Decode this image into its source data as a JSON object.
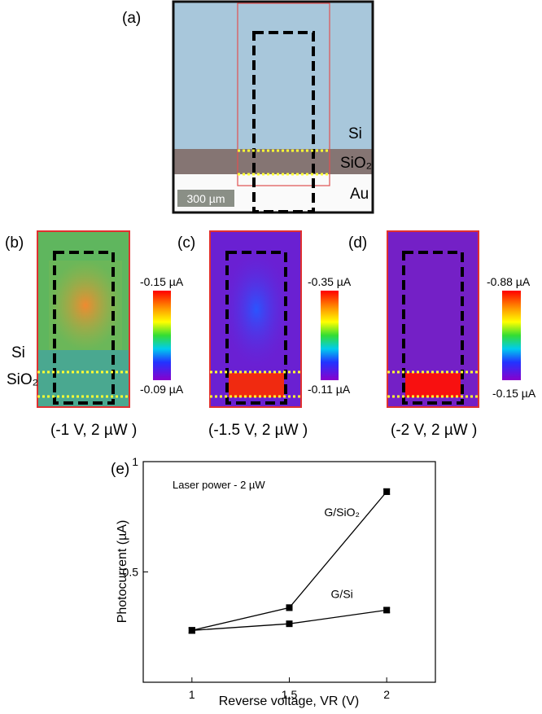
{
  "panel_a": {
    "label": "(a)",
    "regions": [
      "Si",
      "SiO₂",
      "Au"
    ],
    "scale_bar": "300 µm"
  },
  "maps": [
    {
      "label": "(b)",
      "max": "-0.15 µA",
      "min": "-0.09 µA",
      "condition": "(-1 V, 2 µW )",
      "regions": [
        "Si",
        "SiO₂"
      ]
    },
    {
      "label": "(c)",
      "max": "-0.35 µA",
      "min": "-0.11 µA",
      "condition": "(-1.5 V, 2 µW )"
    },
    {
      "label": "(d)",
      "max": "-0.88 µA",
      "min": "-0.15 µA",
      "condition": "(-2 V, 2 µW )"
    }
  ],
  "chart_data": {
    "type": "line",
    "label": "(e)",
    "annotation": "Laser power - 2 µW",
    "x_label": "Reverse voltage, VR (V)",
    "y_label": "Photocurrent (µA)",
    "x": [
      1,
      1.5,
      2
    ],
    "series": [
      {
        "name": "G/SiO₂",
        "color": "#000000",
        "values": [
          0.235,
          0.338,
          0.864
        ],
        "errors": [
          0.012,
          0.012,
          0.012
        ]
      },
      {
        "name": "G/Si",
        "color": "#000000",
        "values": [
          0.235,
          0.265,
          0.327
        ],
        "errors": [
          0.012,
          0.01,
          0.01
        ]
      }
    ],
    "xlim": [
      0.75,
      2.25
    ],
    "ylim": [
      0,
      1
    ],
    "xticks": [
      1,
      1.5,
      2
    ],
    "yticks": [
      0.5,
      1
    ]
  }
}
